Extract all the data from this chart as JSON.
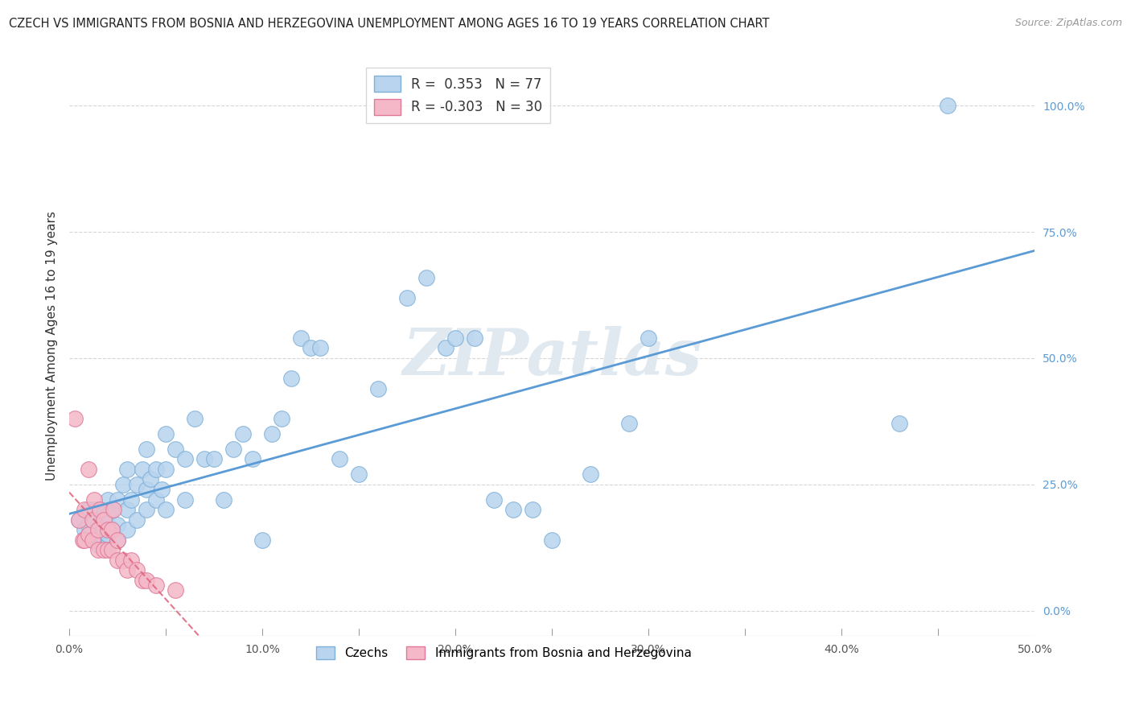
{
  "title": "CZECH VS IMMIGRANTS FROM BOSNIA AND HERZEGOVINA UNEMPLOYMENT AMONG AGES 16 TO 19 YEARS CORRELATION CHART",
  "source": "Source: ZipAtlas.com",
  "ylabel": "Unemployment Among Ages 16 to 19 years",
  "xlim": [
    0.0,
    0.5
  ],
  "ylim": [
    -0.05,
    1.1
  ],
  "xticks": [
    0.0,
    0.05,
    0.1,
    0.15,
    0.2,
    0.25,
    0.3,
    0.35,
    0.4,
    0.45,
    0.5
  ],
  "xticklabels": [
    "0.0%",
    "",
    "10.0%",
    "",
    "20.0%",
    "",
    "30.0%",
    "",
    "40.0%",
    "",
    "50.0%"
  ],
  "yticks_right": [
    0.0,
    0.25,
    0.5,
    0.75,
    1.0
  ],
  "ytick_right_labels": [
    "0.0%",
    "25.0%",
    "50.0%",
    "75.0%",
    "100.0%"
  ],
  "legend_blue_r": "0.353",
  "legend_blue_n": "77",
  "legend_pink_r": "-0.303",
  "legend_pink_n": "30",
  "blue_color": "#b8d4ee",
  "blue_edge_color": "#7fb0d8",
  "pink_color": "#f4b8c8",
  "pink_edge_color": "#e07898",
  "blue_line_color": "#5b9bd5",
  "pink_line_color": "#e06880",
  "watermark": "ZIPatlas",
  "blue_scatter_x": [
    0.005,
    0.008,
    0.01,
    0.01,
    0.01,
    0.012,
    0.012,
    0.013,
    0.015,
    0.015,
    0.015,
    0.015,
    0.018,
    0.018,
    0.018,
    0.02,
    0.02,
    0.02,
    0.02,
    0.02,
    0.022,
    0.022,
    0.025,
    0.025,
    0.025,
    0.028,
    0.03,
    0.03,
    0.03,
    0.032,
    0.035,
    0.035,
    0.038,
    0.04,
    0.04,
    0.04,
    0.042,
    0.045,
    0.045,
    0.048,
    0.05,
    0.05,
    0.05,
    0.055,
    0.06,
    0.06,
    0.065,
    0.07,
    0.075,
    0.08,
    0.085,
    0.09,
    0.095,
    0.1,
    0.105,
    0.11,
    0.115,
    0.12,
    0.125,
    0.13,
    0.14,
    0.15,
    0.16,
    0.175,
    0.185,
    0.195,
    0.2,
    0.21,
    0.22,
    0.23,
    0.24,
    0.25,
    0.27,
    0.29,
    0.3,
    0.43,
    0.455
  ],
  "blue_scatter_y": [
    0.18,
    0.16,
    0.15,
    0.17,
    0.2,
    0.14,
    0.18,
    0.2,
    0.13,
    0.15,
    0.17,
    0.2,
    0.14,
    0.16,
    0.19,
    0.13,
    0.15,
    0.17,
    0.19,
    0.22,
    0.16,
    0.2,
    0.14,
    0.17,
    0.22,
    0.25,
    0.16,
    0.2,
    0.28,
    0.22,
    0.18,
    0.25,
    0.28,
    0.2,
    0.24,
    0.32,
    0.26,
    0.22,
    0.28,
    0.24,
    0.2,
    0.28,
    0.35,
    0.32,
    0.22,
    0.3,
    0.38,
    0.3,
    0.3,
    0.22,
    0.32,
    0.35,
    0.3,
    0.14,
    0.35,
    0.38,
    0.46,
    0.54,
    0.52,
    0.52,
    0.3,
    0.27,
    0.44,
    0.62,
    0.66,
    0.52,
    0.54,
    0.54,
    0.22,
    0.2,
    0.2,
    0.14,
    0.27,
    0.37,
    0.54,
    0.37,
    1.0
  ],
  "pink_scatter_x": [
    0.003,
    0.005,
    0.007,
    0.008,
    0.008,
    0.01,
    0.01,
    0.012,
    0.012,
    0.013,
    0.015,
    0.015,
    0.016,
    0.018,
    0.018,
    0.02,
    0.02,
    0.022,
    0.022,
    0.023,
    0.025,
    0.025,
    0.028,
    0.03,
    0.032,
    0.035,
    0.038,
    0.04,
    0.045,
    0.055
  ],
  "pink_scatter_y": [
    0.38,
    0.18,
    0.14,
    0.14,
    0.2,
    0.15,
    0.28,
    0.14,
    0.18,
    0.22,
    0.12,
    0.16,
    0.2,
    0.12,
    0.18,
    0.12,
    0.16,
    0.12,
    0.16,
    0.2,
    0.1,
    0.14,
    0.1,
    0.08,
    0.1,
    0.08,
    0.06,
    0.06,
    0.05,
    0.04
  ]
}
